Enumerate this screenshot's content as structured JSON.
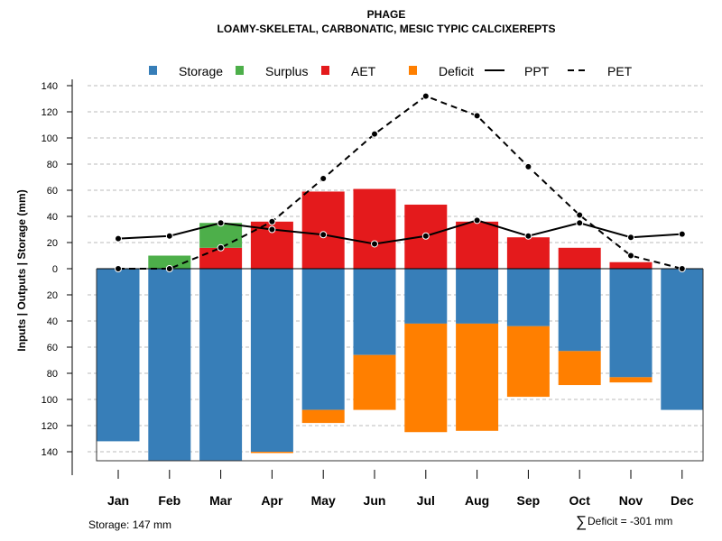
{
  "chart_data": {
    "type": "bar",
    "title": "PHAGE",
    "subtitle": "LOAMY-SKELETAL, CARBONATIC, MESIC TYPIC CALCIXEREPTS",
    "ylabel": "Inputs | Outputs | Storage    (mm)",
    "xlabel": "",
    "ylim": [
      -147,
      140
    ],
    "yticks": [
      140,
      120,
      100,
      80,
      60,
      40,
      20,
      0,
      20,
      40,
      60,
      80,
      100,
      120,
      140
    ],
    "grid": true,
    "legend_position": "top",
    "categories": [
      "Jan",
      "Feb",
      "Mar",
      "Apr",
      "May",
      "Jun",
      "Jul",
      "Aug",
      "Sep",
      "Oct",
      "Nov",
      "Dec"
    ],
    "series": [
      {
        "name": "Storage",
        "type": "bar",
        "color": "#377EB8",
        "values": [
          -132,
          -147,
          -147,
          -140,
          -108,
          -66,
          -42,
          -42,
          -44,
          -63,
          -83,
          -108
        ]
      },
      {
        "name": "Surplus",
        "type": "bar",
        "color": "#4DAF4A",
        "values": [
          0,
          10,
          19,
          0,
          0,
          0,
          0,
          0,
          0,
          0,
          0,
          0
        ]
      },
      {
        "name": "AET",
        "type": "bar",
        "color": "#E41A1C",
        "values": [
          0,
          0,
          16,
          36,
          59,
          61,
          49,
          36,
          24,
          16,
          5,
          0
        ]
      },
      {
        "name": "Deficit",
        "type": "bar",
        "color": "#FF7F00",
        "values": [
          0,
          0,
          0,
          -1,
          -10,
          -42,
          -83,
          -82,
          -54,
          -26,
          -4,
          0
        ]
      },
      {
        "name": "PPT",
        "type": "line",
        "style": "solid",
        "color": "#000000",
        "values": [
          23,
          25,
          35,
          30,
          26,
          19,
          25,
          37,
          25,
          35,
          24,
          26.5
        ]
      },
      {
        "name": "PET",
        "type": "line",
        "style": "dashed",
        "color": "#000000",
        "values": [
          0,
          0,
          16,
          36,
          69,
          103,
          132,
          117,
          78,
          41,
          10,
          0
        ]
      }
    ],
    "annotations": {
      "storage": "Storage: 147 mm",
      "deficit": "Deficit = -301 mm",
      "deficit_symbol": "∑"
    }
  }
}
